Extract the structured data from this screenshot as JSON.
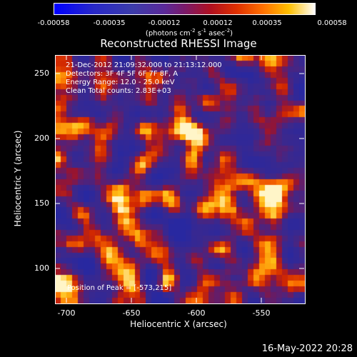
{
  "colorbar": {
    "ticks": [
      "-0.00058",
      "-0.00035",
      "-0.00012",
      "0.00012",
      "0.00035",
      "0.00058"
    ],
    "units_prefix": "(photons cm",
    "units_sup1": "-2",
    "units_mid1": " s",
    "units_sup2": "-1",
    "units_mid2": " asec",
    "units_sup3": "-2",
    "units_suffix": ")"
  },
  "title": "Reconstructed RHESSI Image",
  "info": {
    "time_range": "21-Dec-2012 21:09:32.000 to 21:13:12.000",
    "detectors": "Detectors: 3F 4F 5F 6F 7F 8F, A",
    "energy": "Energy Range: 12.0 - 25.0 keV",
    "clean": "Clean    Total counts: 2.83E+03",
    "peak": "Position of Peak = [-573,215]"
  },
  "axes": {
    "xlabel": "Heliocentric X (arcsec)",
    "ylabel": "Heliocentric Y (arcsec)",
    "xticks": [
      "-700",
      "-650",
      "-600",
      "-550"
    ],
    "yticks": [
      "250",
      "200",
      "150",
      "100"
    ]
  },
  "footer": "16-May-2022 20:28",
  "colors": {
    "background": "#000000",
    "text": "#ffffff"
  }
}
